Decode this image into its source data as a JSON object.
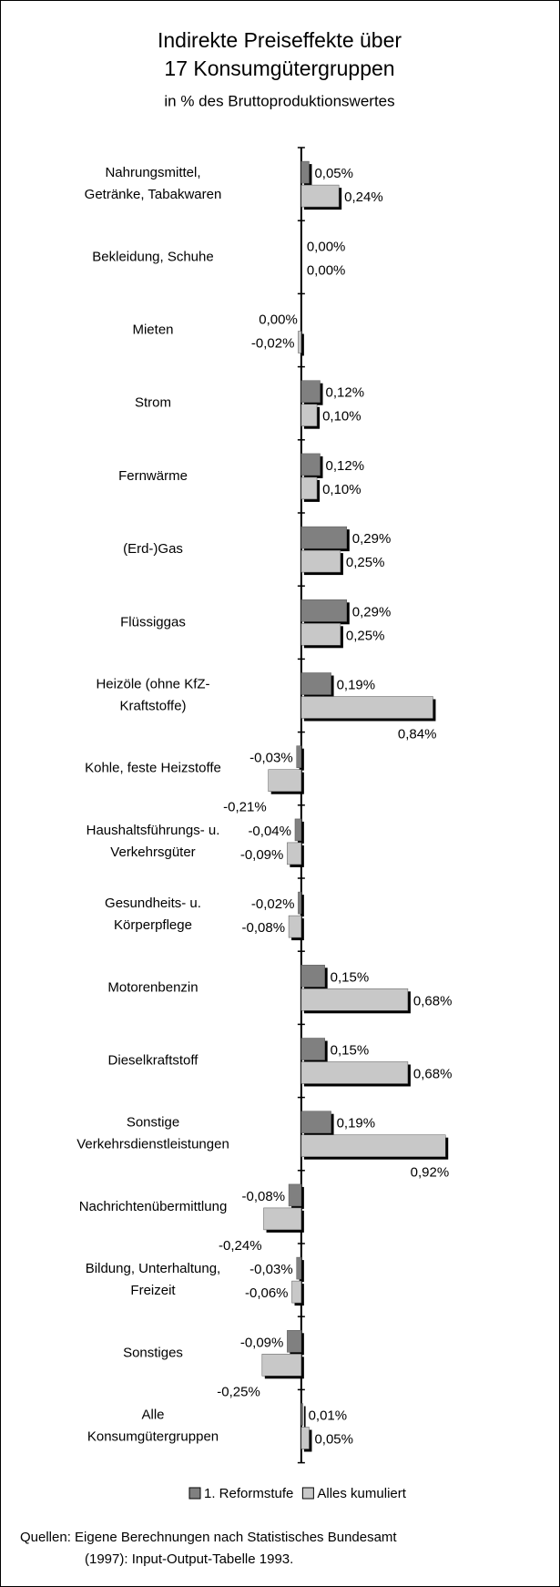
{
  "chart_data": {
    "type": "hbar",
    "title": [
      "Indirekte Preiseffekte über",
      "17 Konsumgütergruppen"
    ],
    "subtitle": "in % des Bruttoproduktionswertes",
    "categories": [
      [
        "Nahrungsmittel,",
        "Getränke, Tabakwaren"
      ],
      [
        "Bekleidung, Schuhe"
      ],
      [
        "Mieten"
      ],
      [
        "Strom"
      ],
      [
        "Fernwärme"
      ],
      [
        "(Erd-)Gas"
      ],
      [
        "Flüssiggas"
      ],
      [
        "Heizöle (ohne KfZ-",
        "Kraftstoffe)"
      ],
      [
        "Kohle, feste Heizstoffe"
      ],
      [
        "Haushaltsführungs- u.",
        "Verkehrsgüter"
      ],
      [
        "Gesundheits- u.",
        "Körperpflege"
      ],
      [
        "Motorenbenzin"
      ],
      [
        "Dieselkraftstoff"
      ],
      [
        "Sonstige",
        "Verkehrsdienstleistungen"
      ],
      [
        "Nachrichtenübermittlung"
      ],
      [
        "Bildung, Unterhaltung,",
        "Freizeit"
      ],
      [
        "Sonstiges"
      ],
      [
        "Alle",
        "Konsumgütergruppen"
      ]
    ],
    "series": [
      {
        "name": "1. Reformstufe",
        "color": "#808080",
        "values": [
          0.05,
          0,
          0,
          0.12,
          0.12,
          0.29,
          0.29,
          0.19,
          -0.03,
          -0.04,
          -0.02,
          0.15,
          0.15,
          0.19,
          -0.08,
          -0.03,
          -0.09,
          0.01
        ],
        "value_labels": [
          "0,05%",
          "0,00%",
          "0,00%",
          "0,12%",
          "0,12%",
          "0,29%",
          "0,29%",
          "0,19%",
          "-0,03%",
          "-0,04%",
          "-0,02%",
          "0,15%",
          "0,15%",
          "0,19%",
          "-0,08%",
          "-0,03%",
          "-0,09%",
          "0,01%"
        ]
      },
      {
        "name": "Alles kumuliert",
        "color": "#c8c8c8",
        "values": [
          0.24,
          0,
          -0.02,
          0.1,
          0.1,
          0.25,
          0.25,
          0.84,
          -0.21,
          -0.09,
          -0.08,
          0.68,
          0.68,
          0.92,
          -0.24,
          -0.06,
          -0.25,
          0.05
        ],
        "value_labels": [
          "0,24%",
          "0,00%",
          "-0,02%",
          "0,10%",
          "0,10%",
          "0,25%",
          "0,25%",
          "0,84%",
          "-0,21%",
          "-0,09%",
          "-0,08%",
          "0,68%",
          "0,68%",
          "0,92%",
          "-0,24%",
          "-0,06%",
          "-0,25%",
          "0,05%"
        ]
      }
    ],
    "xlim": [
      -0.4,
      1.0
    ],
    "source": [
      "Quellen:  Eigene Berechnungen nach Statistisches Bundesamt",
      "(1997): Input-Output-Tabelle 1993."
    ]
  }
}
